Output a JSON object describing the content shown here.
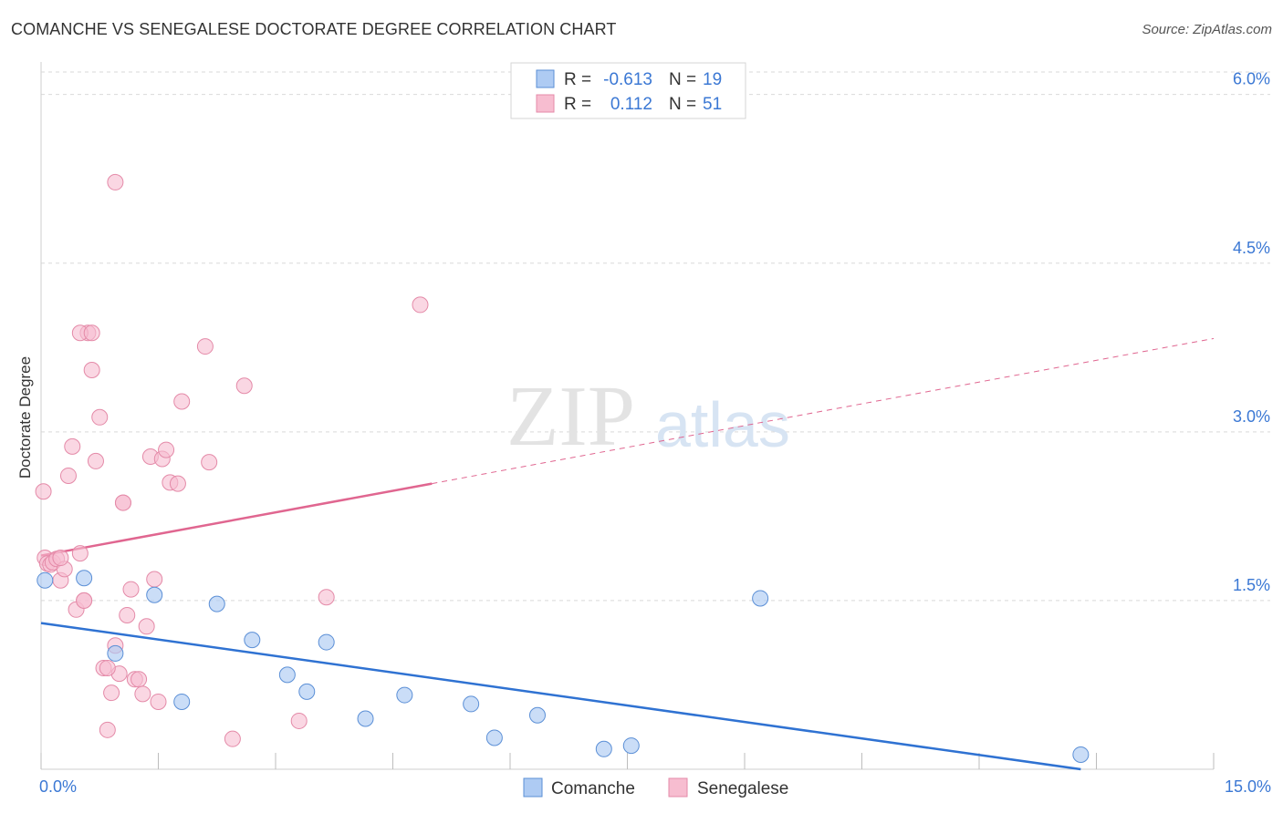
{
  "header": {
    "title": "COMANCHE VS SENEGALESE DOCTORATE DEGREE CORRELATION CHART",
    "source": "Source: ZipAtlas.com"
  },
  "watermark": {
    "zip": "ZIP",
    "atlas": "atlas"
  },
  "colors": {
    "comanche_fill": "#aecbf3",
    "comanche_stroke": "#5b8fd6",
    "comanche_line": "#2f72d2",
    "senegalese_fill": "#f7bdd0",
    "senegalese_stroke": "#e48aa8",
    "senegalese_line": "#e06690",
    "axis_label": "#3b78d4",
    "grid": "#d9d9d9"
  },
  "legend_top": {
    "rows": [
      {
        "series": "Comanche",
        "r_label": "R =",
        "r_value": "-0.613",
        "n_label": "N =",
        "n_value": "19"
      },
      {
        "series": "Senegalese",
        "r_label": "R =",
        "r_value": "0.112",
        "n_label": "N =",
        "n_value": "51"
      }
    ]
  },
  "chart_data": {
    "type": "scatter",
    "title": "COMANCHE VS SENEGALESE DOCTORATE DEGREE CORRELATION CHART",
    "xlabel": "",
    "ylabel": "Doctorate Degree",
    "xlim": [
      0,
      15
    ],
    "ylim": [
      0,
      6.2
    ],
    "x_tick_labels": [
      {
        "value": 0,
        "label": "0.0%"
      },
      {
        "value": 15,
        "label": "15.0%"
      }
    ],
    "x_minor_ticks": [
      0,
      1.5,
      3,
      4.5,
      6,
      7.5,
      9,
      10.5,
      12,
      13.5,
      15
    ],
    "y_ticks": [
      {
        "value": 1.5,
        "label": "1.5%"
      },
      {
        "value": 3.0,
        "label": "3.0%"
      },
      {
        "value": 4.5,
        "label": "4.5%"
      },
      {
        "value": 6.0,
        "label": "6.0%"
      }
    ],
    "grid": true,
    "legend_position": "bottom-center",
    "series": [
      {
        "name": "Comanche",
        "points": [
          [
            0.05,
            1.68
          ],
          [
            0.55,
            1.7
          ],
          [
            0.95,
            1.03
          ],
          [
            1.45,
            1.55
          ],
          [
            1.8,
            0.6
          ],
          [
            2.25,
            1.47
          ],
          [
            2.7,
            1.15
          ],
          [
            3.15,
            0.84
          ],
          [
            3.4,
            0.69
          ],
          [
            3.65,
            1.13
          ],
          [
            4.15,
            0.45
          ],
          [
            4.65,
            0.66
          ],
          [
            5.5,
            0.58
          ],
          [
            5.8,
            0.28
          ],
          [
            6.35,
            0.48
          ],
          [
            7.2,
            0.18
          ],
          [
            7.55,
            0.21
          ],
          [
            9.2,
            1.52
          ],
          [
            13.3,
            0.13
          ]
        ],
        "trend": {
          "x": [
            0,
            13.3
          ],
          "y": [
            1.3,
            0.0
          ]
        }
      },
      {
        "name": "Senegalese",
        "points": [
          [
            0.03,
            2.47
          ],
          [
            0.05,
            1.88
          ],
          [
            0.08,
            1.83
          ],
          [
            0.12,
            1.82
          ],
          [
            0.15,
            1.84
          ],
          [
            0.2,
            1.87
          ],
          [
            0.25,
            1.68
          ],
          [
            0.3,
            1.78
          ],
          [
            0.35,
            2.61
          ],
          [
            0.4,
            2.87
          ],
          [
            0.45,
            1.42
          ],
          [
            0.5,
            1.92
          ],
          [
            0.55,
            1.5
          ],
          [
            0.6,
            3.88
          ],
          [
            0.65,
            3.55
          ],
          [
            0.7,
            2.74
          ],
          [
            0.75,
            3.13
          ],
          [
            0.8,
            0.9
          ],
          [
            0.85,
            0.35
          ],
          [
            0.9,
            0.68
          ],
          [
            0.95,
            1.1
          ],
          [
            1.0,
            0.85
          ],
          [
            1.05,
            2.37
          ],
          [
            1.1,
            1.37
          ],
          [
            1.15,
            1.6
          ],
          [
            1.2,
            0.8
          ],
          [
            1.25,
            0.8
          ],
          [
            1.3,
            0.67
          ],
          [
            1.35,
            1.27
          ],
          [
            1.4,
            2.78
          ],
          [
            1.45,
            1.69
          ],
          [
            1.5,
            0.6
          ],
          [
            1.55,
            2.76
          ],
          [
            1.6,
            2.84
          ],
          [
            1.65,
            2.55
          ],
          [
            1.75,
            2.54
          ],
          [
            1.8,
            3.27
          ],
          [
            2.1,
            3.76
          ],
          [
            2.15,
            2.73
          ],
          [
            2.45,
            0.27
          ],
          [
            2.6,
            3.41
          ],
          [
            3.3,
            0.43
          ],
          [
            3.65,
            1.53
          ],
          [
            4.85,
            4.13
          ],
          [
            0.95,
            5.22
          ],
          [
            0.5,
            3.88
          ],
          [
            0.65,
            3.88
          ],
          [
            0.25,
            1.88
          ],
          [
            0.55,
            1.5
          ],
          [
            0.85,
            0.9
          ],
          [
            1.05,
            2.37
          ]
        ],
        "trend": {
          "x": [
            0,
            5.0
          ],
          "y": [
            1.9,
            2.54
          ]
        },
        "trend_dashed": {
          "x": [
            5.0,
            15.0
          ],
          "y": [
            2.54,
            3.83
          ]
        }
      }
    ]
  }
}
